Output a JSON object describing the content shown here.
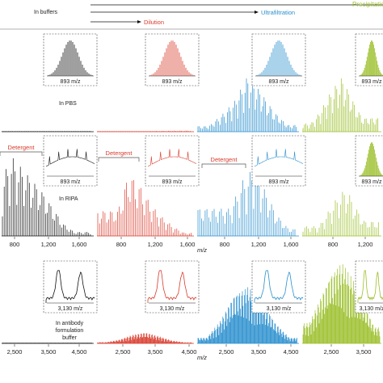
{
  "header": {
    "buffers_label": "In buffers",
    "steps": [
      "Dilution",
      "Ultrafiltration",
      "Precipitation"
    ]
  },
  "colors": {
    "raw": "#111111",
    "dilution": "#d93a2b",
    "ultrafiltration": "#2a8fce",
    "precipitation": "#9bbf2a",
    "tick": "#333333"
  },
  "conditions": {
    "pbs": "In PBS",
    "ripa": "In RIPA",
    "antibody": [
      "In antibody",
      "formulation",
      "buffer"
    ]
  },
  "detergent_label": "Detergent",
  "inset_labels": {
    "top": "893 m/z",
    "middle": "893 m/z",
    "bottom": "3,130 m/z"
  },
  "axis_label": "m/z",
  "chart_data": [
    {
      "type": "line",
      "title": "In PBS",
      "xlabel": "m/z",
      "series": [
        {
          "color": "#111111",
          "x": [
            600,
            700,
            800,
            900,
            1000,
            1100,
            1200,
            1300
          ],
          "y": [
            5,
            8,
            10,
            7,
            6,
            9,
            5,
            4
          ]
        },
        {
          "color": "#d93a2b",
          "x": [
            800,
            1000,
            1200,
            1400,
            1600
          ],
          "y": [
            3,
            6,
            8,
            10,
            5
          ]
        },
        {
          "color": "#2a8fce",
          "x": [
            700,
            800,
            900,
            1000,
            1100,
            1200,
            1300
          ],
          "y": [
            10,
            30,
            55,
            100,
            70,
            35,
            12
          ]
        },
        {
          "color": "#9bbf2a",
          "x": [
            700,
            800,
            900,
            1000,
            1100,
            1200
          ],
          "y": [
            15,
            40,
            75,
            100,
            60,
            25
          ]
        }
      ]
    },
    {
      "type": "line",
      "title": "In RIPA",
      "xlabel": "m/z",
      "xticks": [
        "800",
        "1,200",
        "1,600"
      ],
      "series": [
        {
          "color": "#111111",
          "x": [
            500,
            600,
            700,
            800,
            900,
            1000,
            1100,
            1200
          ],
          "y": [
            60,
            100,
            85,
            70,
            55,
            35,
            15,
            5
          ]
        },
        {
          "color": "#d93a2b",
          "x": [
            700,
            800,
            900,
            1000,
            1100,
            1200,
            1300
          ],
          "y": [
            40,
            100,
            80,
            50,
            30,
            15,
            5
          ]
        },
        {
          "color": "#2a8fce",
          "x": [
            800,
            900,
            1000,
            1100,
            1200,
            1300
          ],
          "y": [
            40,
            80,
            100,
            65,
            30,
            10
          ]
        },
        {
          "color": "#9bbf2a",
          "x": [
            700,
            800,
            900,
            1000,
            1100,
            1200
          ],
          "y": [
            20,
            50,
            80,
            100,
            60,
            30
          ]
        }
      ]
    },
    {
      "type": "line",
      "title": "In antibody formulation buffer",
      "xlabel": "m/z",
      "xticks": [
        "2,500",
        "3,500",
        "4,500"
      ],
      "series": [
        {
          "color": "#111111",
          "x": [
            2500,
            3000,
            3500,
            4000,
            4500
          ],
          "y": [
            3,
            4,
            5,
            4,
            3
          ]
        },
        {
          "color": "#d93a2b",
          "x": [
            2500,
            2750,
            3000,
            3250,
            3500,
            3750,
            4000
          ],
          "y": [
            5,
            15,
            35,
            45,
            30,
            12,
            4
          ]
        },
        {
          "color": "#2a8fce",
          "x": [
            2500,
            2750,
            3000,
            3250,
            3500,
            3750,
            4000
          ],
          "y": [
            10,
            40,
            85,
            100,
            75,
            35,
            10
          ]
        },
        {
          "color": "#9bbf2a",
          "x": [
            2500,
            2750,
            3000,
            3250,
            3500,
            3750,
            4000
          ],
          "y": [
            25,
            55,
            85,
            100,
            80,
            50,
            20
          ]
        }
      ]
    }
  ]
}
